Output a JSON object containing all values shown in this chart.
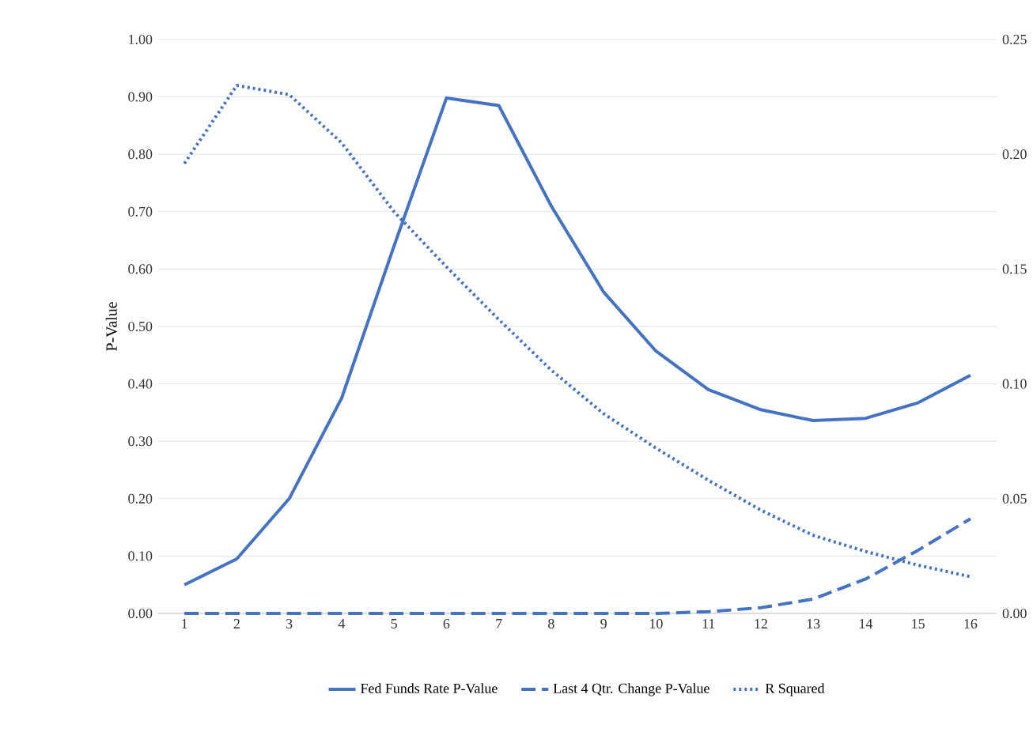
{
  "chart_data": {
    "type": "line",
    "ylabel": "P-Value",
    "categories": [
      "1",
      "2",
      "3",
      "4",
      "5",
      "6",
      "7",
      "8",
      "9",
      "10",
      "11",
      "12",
      "13",
      "14",
      "15",
      "16"
    ],
    "series": [
      {
        "name": "Fed Funds Rate P-Value",
        "color": "#4472c4",
        "line_style": "solid",
        "values": [
          0.05,
          0.095,
          0.2,
          0.375,
          0.64,
          0.898,
          0.885,
          0.71,
          0.56,
          0.457,
          0.39,
          0.355,
          0.336,
          0.34,
          0.367,
          0.415
        ]
      },
      {
        "name": "Last 4 Qtr. Change P-Value",
        "color": "#4472c4",
        "line_style": "dashed",
        "values": [
          0.0,
          0.0,
          0.0,
          0.0,
          0.0,
          0.0,
          0.0,
          0.0,
          0.0,
          0.0,
          0.003,
          0.01,
          0.025,
          0.06,
          0.11,
          0.165
        ]
      },
      {
        "name": "R Squared",
        "color": "#4472c4",
        "line_style": "dotted",
        "axis": "y2",
        "values": [
          0.196,
          0.23,
          0.226,
          0.205,
          0.175,
          0.151,
          0.128,
          0.106,
          0.087,
          0.072,
          0.058,
          0.045,
          0.034,
          0.027,
          0.021,
          0.016
        ]
      }
    ],
    "ylim": [
      0,
      1
    ],
    "yticks": [
      {
        "value": 0,
        "label": "0.00"
      },
      {
        "value": 0.1,
        "label": "0.10"
      },
      {
        "value": 0.2,
        "label": "0.20"
      },
      {
        "value": 0.3,
        "label": "0.30"
      },
      {
        "value": 0.4,
        "label": "0.40"
      },
      {
        "value": 0.5,
        "label": "0.50"
      },
      {
        "value": 0.6,
        "label": "0.60"
      },
      {
        "value": 0.7,
        "label": "0.70"
      },
      {
        "value": 0.8,
        "label": "0.80"
      },
      {
        "value": 0.9,
        "label": "0.90"
      },
      {
        "value": 1,
        "label": "1.00"
      }
    ],
    "y2lim": [
      0,
      0.25
    ],
    "y2ticks": [
      {
        "value": 0,
        "label": "0.00"
      },
      {
        "value": 0.05,
        "label": "0.05"
      },
      {
        "value": 0.1,
        "label": "0.10"
      },
      {
        "value": 0.15,
        "label": "0.15"
      },
      {
        "value": 0.2,
        "label": "0.20"
      },
      {
        "value": 0.25,
        "label": "0.25"
      }
    ],
    "grid": "y",
    "legend": "bottom"
  }
}
